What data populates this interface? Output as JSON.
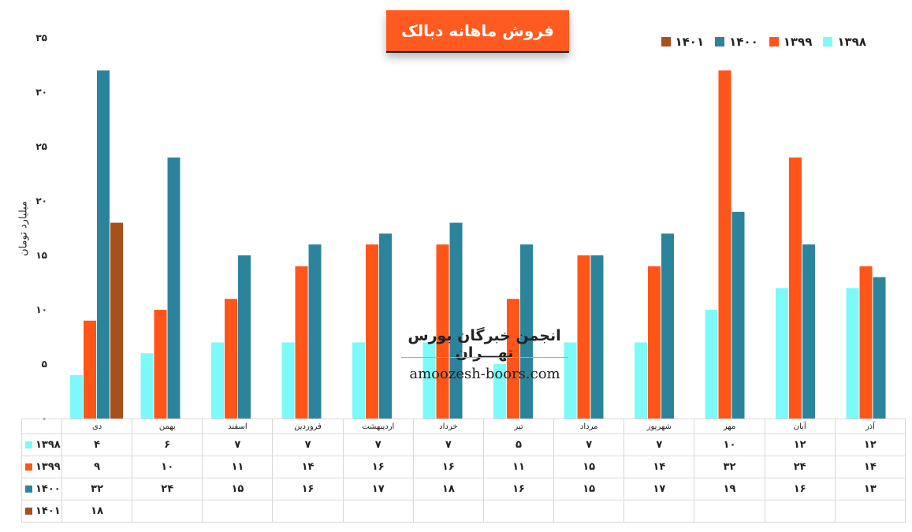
{
  "title": "فروش ماهانه دبالک",
  "watermark": {
    "title": "انجمن خبرگان بورس تهـــران",
    "url": "amoozesh-boors.com"
  },
  "colors": {
    "1398": "#7ef9f9",
    "1399": "#ff5519",
    "1400": "#2c849c",
    "1401": "#a8501c",
    "title_bg": "#ff5a1f"
  },
  "chart_data": {
    "type": "bar",
    "title": "فروش ماهانه دبالک",
    "ylabel": "میلیارد تومان",
    "xlabel": "",
    "ylim": [
      0,
      35
    ],
    "yticks": [
      "۰",
      "۵",
      "۱۰",
      "۱۵",
      "۲۰",
      "۲۵",
      "۳۰",
      "۳۵"
    ],
    "ytick_values": [
      0,
      5,
      10,
      15,
      20,
      25,
      30,
      35
    ],
    "legend_position": "top-right",
    "grid": false,
    "categories": [
      "دی",
      "بهمن",
      "اسفند",
      "فروردین",
      "اردیبهشت",
      "خرداد",
      "تیر",
      "مرداد",
      "شهریور",
      "مهر",
      "آبان",
      "آذر"
    ],
    "series": [
      {
        "name": "۱۳۹۸",
        "values": [
          4,
          6,
          7,
          7,
          7,
          7,
          5,
          7,
          7,
          10,
          12,
          12
        ],
        "labels": [
          "۴",
          "۶",
          "۷",
          "۷",
          "۷",
          "۷",
          "۵",
          "۷",
          "۷",
          "۱۰",
          "۱۲",
          "۱۲"
        ]
      },
      {
        "name": "۱۳۹۹",
        "values": [
          9,
          10,
          11,
          14,
          16,
          16,
          11,
          15,
          14,
          32,
          24,
          14
        ],
        "labels": [
          "۹",
          "۱۰",
          "۱۱",
          "۱۴",
          "۱۶",
          "۱۶",
          "۱۱",
          "۱۵",
          "۱۴",
          "۳۲",
          "۲۴",
          "۱۴"
        ]
      },
      {
        "name": "۱۴۰۰",
        "values": [
          32,
          24,
          15,
          16,
          17,
          18,
          16,
          15,
          17,
          19,
          16,
          13
        ],
        "labels": [
          "۳۲",
          "۲۴",
          "۱۵",
          "۱۶",
          "۱۷",
          "۱۸",
          "۱۶",
          "۱۵",
          "۱۷",
          "۱۹",
          "۱۶",
          "۱۳"
        ]
      },
      {
        "name": "۱۴۰۱",
        "values": [
          18,
          null,
          null,
          null,
          null,
          null,
          null,
          null,
          null,
          null,
          null,
          null
        ],
        "labels": [
          "۱۸",
          "",
          "",
          "",
          "",
          "",
          "",
          "",
          "",
          "",
          "",
          ""
        ]
      }
    ]
  }
}
